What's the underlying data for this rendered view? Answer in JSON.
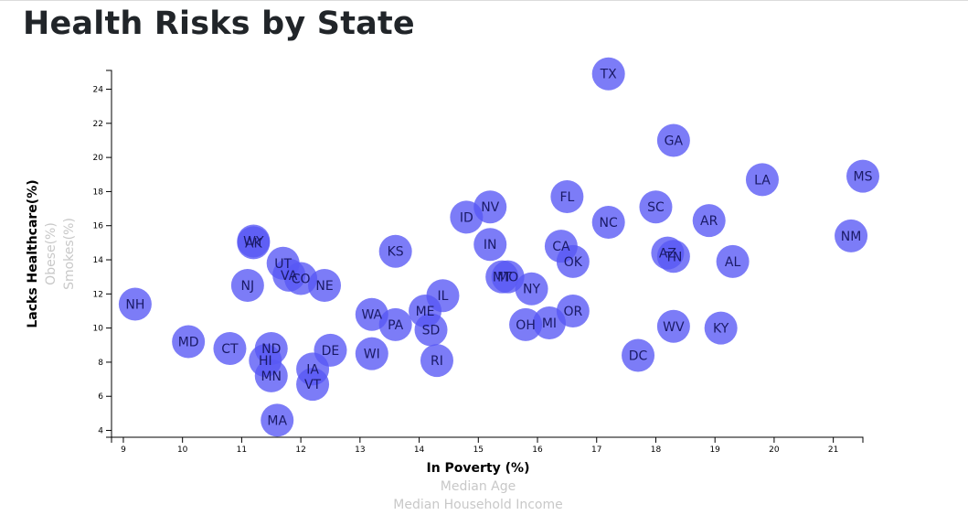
{
  "page": {
    "title": "Health Risks by State"
  },
  "chart_data": {
    "type": "scatter",
    "title": "Health Risks by State",
    "xlabel": "In Poverty (%)",
    "ylabel": "Lacks Healthcare(%)",
    "x_axis_options": [
      "In Poverty (%)",
      "Median Age",
      "Median Household Income"
    ],
    "y_axis_options": [
      "Lacks Healthcare(%)",
      "Obese(%)",
      "Smokes(%)"
    ],
    "active_x": "In Poverty (%)",
    "active_y": "Lacks Healthcare(%)",
    "xlim": [
      8.8,
      21.5
    ],
    "ylim": [
      3.6,
      25.1
    ],
    "x_ticks": [
      9,
      10,
      11,
      12,
      13,
      14,
      15,
      16,
      17,
      18,
      19,
      20,
      21
    ],
    "y_ticks": [
      4,
      6,
      8,
      10,
      12,
      14,
      16,
      18,
      20,
      22,
      24
    ],
    "grid": false,
    "marker_color": "#5757f5",
    "points": [
      {
        "label": "TX",
        "x": 17.2,
        "y": 24.9
      },
      {
        "label": "GA",
        "x": 18.3,
        "y": 21.0
      },
      {
        "label": "MS",
        "x": 21.5,
        "y": 18.9
      },
      {
        "label": "LA",
        "x": 19.8,
        "y": 18.7
      },
      {
        "label": "FL",
        "x": 16.5,
        "y": 17.7
      },
      {
        "label": "SC",
        "x": 18.0,
        "y": 17.1
      },
      {
        "label": "NV",
        "x": 15.2,
        "y": 17.1
      },
      {
        "label": "ID",
        "x": 14.8,
        "y": 16.5
      },
      {
        "label": "AR",
        "x": 18.9,
        "y": 16.3
      },
      {
        "label": "NC",
        "x": 17.2,
        "y": 16.2
      },
      {
        "label": "NM",
        "x": 21.3,
        "y": 15.4
      },
      {
        "label": "WY",
        "x": 11.2,
        "y": 15.1
      },
      {
        "label": "AK",
        "x": 11.2,
        "y": 15.0
      },
      {
        "label": "IN",
        "x": 15.2,
        "y": 14.9
      },
      {
        "label": "CA",
        "x": 16.4,
        "y": 14.8
      },
      {
        "label": "KS",
        "x": 13.6,
        "y": 14.5
      },
      {
        "label": "AZ",
        "x": 18.2,
        "y": 14.4
      },
      {
        "label": "TN",
        "x": 18.3,
        "y": 14.2
      },
      {
        "label": "OK",
        "x": 16.6,
        "y": 13.9
      },
      {
        "label": "AL",
        "x": 19.3,
        "y": 13.9
      },
      {
        "label": "UT",
        "x": 11.7,
        "y": 13.8
      },
      {
        "label": "VA",
        "x": 11.8,
        "y": 13.1
      },
      {
        "label": "CO",
        "x": 12.0,
        "y": 12.9
      },
      {
        "label": "MT",
        "x": 15.4,
        "y": 13.0
      },
      {
        "label": "MO",
        "x": 15.5,
        "y": 13.0
      },
      {
        "label": "NJ",
        "x": 11.1,
        "y": 12.5
      },
      {
        "label": "NE",
        "x": 12.4,
        "y": 12.5
      },
      {
        "label": "NY",
        "x": 15.9,
        "y": 12.3
      },
      {
        "label": "IL",
        "x": 14.4,
        "y": 11.9
      },
      {
        "label": "NH",
        "x": 9.2,
        "y": 11.4
      },
      {
        "label": "ME",
        "x": 14.1,
        "y": 11.0
      },
      {
        "label": "OR",
        "x": 16.6,
        "y": 11.0
      },
      {
        "label": "WA",
        "x": 13.2,
        "y": 10.8
      },
      {
        "label": "PA",
        "x": 13.6,
        "y": 10.2
      },
      {
        "label": "OH",
        "x": 15.8,
        "y": 10.2
      },
      {
        "label": "MI",
        "x": 16.2,
        "y": 10.3
      },
      {
        "label": "WV",
        "x": 18.3,
        "y": 10.1
      },
      {
        "label": "KY",
        "x": 19.1,
        "y": 10.0
      },
      {
        "label": "SD",
        "x": 14.2,
        "y": 9.9
      },
      {
        "label": "MD",
        "x": 10.1,
        "y": 9.2
      },
      {
        "label": "CT",
        "x": 10.8,
        "y": 8.8
      },
      {
        "label": "ND",
        "x": 11.5,
        "y": 8.8
      },
      {
        "label": "DE",
        "x": 12.5,
        "y": 8.7
      },
      {
        "label": "WI",
        "x": 13.2,
        "y": 8.5
      },
      {
        "label": "DC",
        "x": 17.7,
        "y": 8.4
      },
      {
        "label": "HI",
        "x": 11.4,
        "y": 8.1
      },
      {
        "label": "RI",
        "x": 14.3,
        "y": 8.1
      },
      {
        "label": "IA",
        "x": 12.2,
        "y": 7.6
      },
      {
        "label": "MN",
        "x": 11.5,
        "y": 7.2
      },
      {
        "label": "VT",
        "x": 12.2,
        "y": 6.7
      },
      {
        "label": "MA",
        "x": 11.6,
        "y": 4.6
      }
    ]
  }
}
